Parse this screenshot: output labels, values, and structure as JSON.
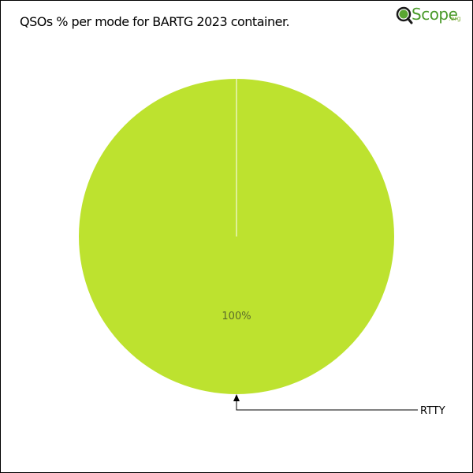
{
  "title": "QSOs % per mode for BARTG 2023 container.",
  "logo": {
    "q_letter": "Q",
    "word": "Scope",
    "suffix": ".org",
    "icon": "magnifier-globe-icon",
    "color": "#4a9a2a"
  },
  "chart_data": {
    "type": "pie",
    "title": "QSOs % per mode for BARTG 2023 container.",
    "slices": [
      {
        "label": "RTTY",
        "value": 100,
        "percent_label": "100%",
        "color": "#bde22f"
      }
    ]
  }
}
